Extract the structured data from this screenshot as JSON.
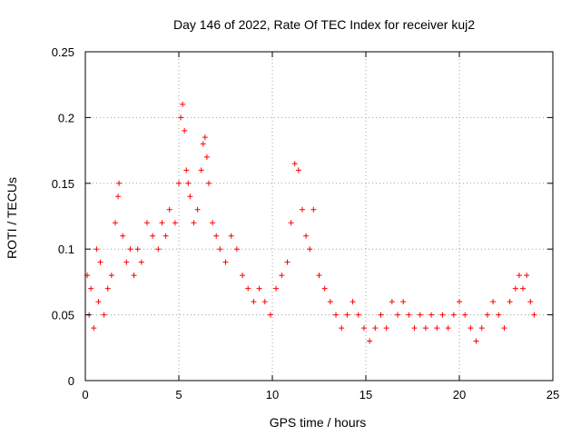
{
  "chart_data": {
    "type": "scatter",
    "title": "Day 146 of 2022, Rate Of TEC Index for receiver kuj2",
    "xlabel": "GPS time / hours",
    "ylabel": "ROTI / TECUs",
    "xlim": [
      0,
      25
    ],
    "ylim": [
      0,
      0.25
    ],
    "x_ticks": [
      0,
      5,
      10,
      15,
      20,
      25
    ],
    "x_tick_labels": [
      "0",
      "5",
      "10",
      "15",
      "20",
      "25"
    ],
    "y_ticks": [
      0,
      0.05,
      0.1,
      0.15,
      0.2,
      0.25
    ],
    "y_tick_labels": [
      "0",
      "0.05",
      "0.1",
      "0.15",
      "0.2",
      "0.25"
    ],
    "grid": true,
    "marker": "plus",
    "color": "#ff0000",
    "series": [
      {
        "name": "ROTI",
        "x": [
          0.1,
          0.2,
          0.3,
          0.45,
          0.6,
          0.7,
          0.8,
          1.0,
          1.2,
          1.4,
          1.6,
          1.75,
          1.8,
          2.0,
          2.2,
          2.4,
          2.6,
          2.8,
          3.0,
          3.3,
          3.6,
          3.9,
          4.1,
          4.3,
          4.5,
          4.8,
          5.0,
          5.1,
          5.2,
          5.3,
          5.4,
          5.5,
          5.6,
          5.8,
          6.0,
          6.2,
          6.3,
          6.4,
          6.5,
          6.6,
          6.8,
          7.0,
          7.2,
          7.5,
          7.8,
          8.1,
          8.4,
          8.7,
          9.0,
          9.3,
          9.6,
          9.9,
          10.2,
          10.5,
          10.8,
          11.0,
          11.2,
          11.4,
          11.6,
          11.8,
          12.0,
          12.2,
          12.5,
          12.8,
          13.1,
          13.4,
          13.7,
          14.0,
          14.3,
          14.6,
          14.9,
          15.2,
          15.5,
          15.8,
          16.1,
          16.4,
          16.7,
          17.0,
          17.3,
          17.6,
          17.9,
          18.2,
          18.5,
          18.8,
          19.1,
          19.4,
          19.7,
          20.0,
          20.3,
          20.6,
          20.9,
          21.2,
          21.5,
          21.8,
          22.1,
          22.4,
          22.7,
          23.0,
          23.2,
          23.4,
          23.6,
          23.8,
          24.0
        ],
        "y": [
          0.08,
          0.05,
          0.07,
          0.04,
          0.1,
          0.06,
          0.09,
          0.05,
          0.07,
          0.08,
          0.12,
          0.14,
          0.15,
          0.11,
          0.09,
          0.1,
          0.08,
          0.1,
          0.09,
          0.12,
          0.11,
          0.1,
          0.12,
          0.11,
          0.13,
          0.12,
          0.15,
          0.2,
          0.21,
          0.19,
          0.16,
          0.15,
          0.14,
          0.12,
          0.13,
          0.16,
          0.18,
          0.185,
          0.17,
          0.15,
          0.12,
          0.11,
          0.1,
          0.09,
          0.11,
          0.1,
          0.08,
          0.07,
          0.06,
          0.07,
          0.06,
          0.05,
          0.07,
          0.08,
          0.09,
          0.12,
          0.165,
          0.16,
          0.13,
          0.11,
          0.1,
          0.13,
          0.08,
          0.07,
          0.06,
          0.05,
          0.04,
          0.05,
          0.06,
          0.05,
          0.04,
          0.03,
          0.04,
          0.05,
          0.04,
          0.06,
          0.05,
          0.06,
          0.05,
          0.04,
          0.05,
          0.04,
          0.05,
          0.04,
          0.05,
          0.04,
          0.05,
          0.06,
          0.05,
          0.04,
          0.03,
          0.04,
          0.05,
          0.06,
          0.05,
          0.04,
          0.06,
          0.07,
          0.08,
          0.07,
          0.08,
          0.06,
          0.05
        ]
      }
    ]
  }
}
